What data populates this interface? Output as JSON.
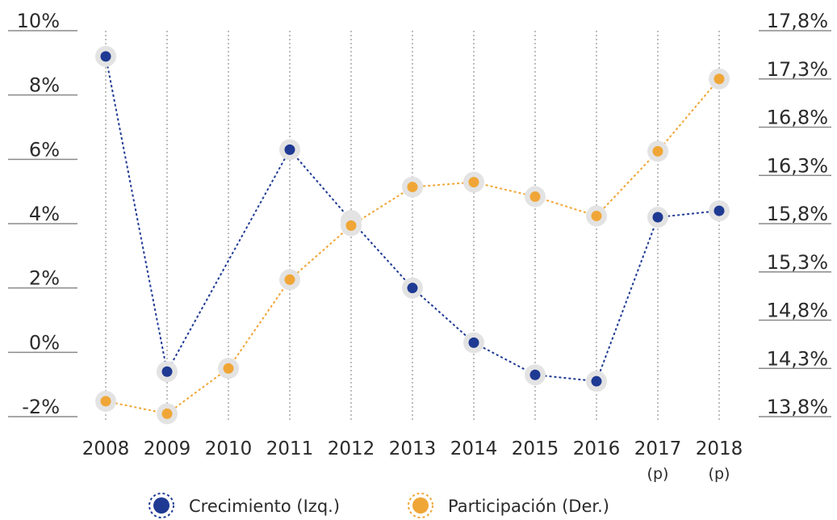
{
  "chart_data": {
    "type": "line",
    "categories": [
      "2008",
      "2009",
      "2010",
      "2011",
      "2012",
      "2013",
      "2014",
      "2015",
      "2016",
      "2017",
      "2018"
    ],
    "category_suffix": [
      "",
      "",
      "",
      "",
      "",
      "",
      "",
      "",
      "",
      "(p)",
      "(p)"
    ],
    "left_axis": {
      "ticks": [
        "10%",
        "8%",
        "6%",
        "4%",
        "2%",
        "0%",
        "-2%"
      ],
      "range": [
        -2,
        10
      ]
    },
    "right_axis": {
      "ticks": [
        "17,8%",
        "17,3%",
        "16,8%",
        "16,3%",
        "15,8%",
        "15,3%",
        "14,8%",
        "14,3%",
        "13,8%"
      ],
      "range": [
        13.8,
        17.8
      ]
    },
    "series": [
      {
        "name": "Crecimiento (Izq.)",
        "axis": "left",
        "color": "#1f3a93",
        "values": [
          9.2,
          -0.6,
          null,
          6.3,
          4.1,
          2.0,
          0.3,
          -0.7,
          -0.9,
          4.2,
          4.4
        ]
      },
      {
        "name": "Participación (Der.)",
        "axis": "right",
        "color": "#f0a637",
        "values": [
          13.96,
          13.83,
          14.3,
          15.22,
          15.78,
          16.18,
          16.23,
          16.08,
          15.88,
          16.55,
          17.3
        ]
      }
    ],
    "grid": "vertical dotted",
    "legend": "bottom"
  }
}
